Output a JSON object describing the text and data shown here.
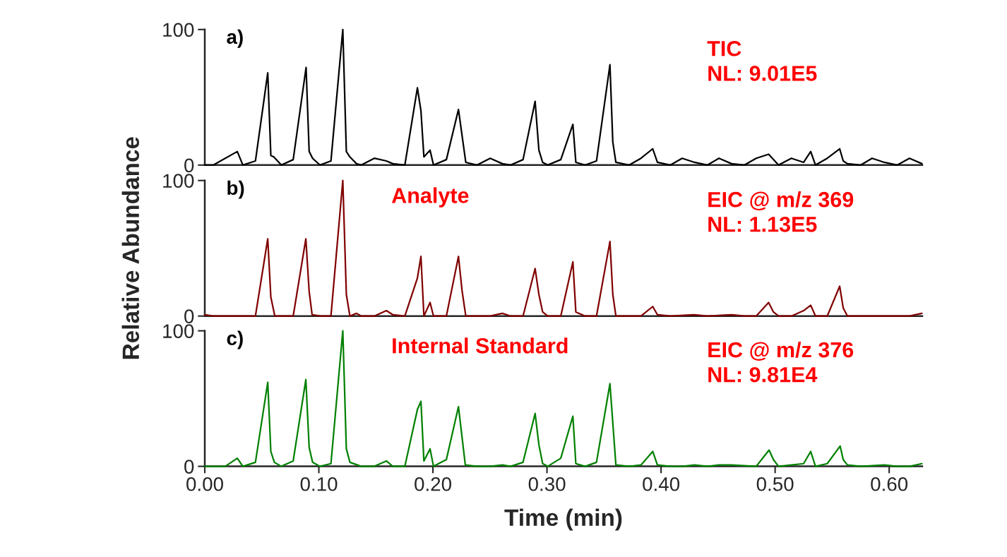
{
  "chart_data": [
    {
      "type": "line",
      "annotations": [
        "a)",
        "TIC\nNL: 9.01E5"
      ],
      "xlim": [
        0,
        0.629
      ],
      "ylim": [
        0,
        100
      ],
      "yticks": [
        0,
        100
      ],
      "tick_labels": "y",
      "grid": false,
      "legend": false,
      "series": [
        {
          "color": "#000000",
          "x": [
            0,
            0.0075,
            0.0285,
            0.0334,
            0.0444,
            0.0552,
            0.0579,
            0.0605,
            0.0671,
            0.0775,
            0.0888,
            0.0915,
            0.0945,
            0.1009,
            0.1106,
            0.121,
            0.1241,
            0.1272,
            0.133,
            0.1372,
            0.1486,
            0.1592,
            0.1648,
            0.1754,
            0.1864,
            0.1895,
            0.1921,
            0.1975,
            0.2005,
            0.2118,
            0.2224,
            0.2288,
            0.2387,
            0.2502,
            0.2609,
            0.2681,
            0.279,
            0.2896,
            0.2929,
            0.2962,
            0.3006,
            0.3121,
            0.3227,
            0.3253,
            0.3335,
            0.3434,
            0.3552,
            0.3577,
            0.3604,
            0.3721,
            0.3824,
            0.3927,
            0.3968,
            0.4082,
            0.4185,
            0.4294,
            0.4407,
            0.4508,
            0.4618,
            0.4731,
            0.4834,
            0.4943,
            0.503,
            0.5143,
            0.525,
            0.5312,
            0.5354,
            0.5457,
            0.5566,
            0.5597,
            0.5634,
            0.5751,
            0.585,
            0.5957,
            0.6071,
            0.6178,
            0.6287
          ],
          "values": [
            0,
            0,
            10,
            0,
            3,
            68,
            7,
            6,
            0,
            4,
            72,
            10,
            5,
            0,
            3,
            100,
            10,
            6,
            1,
            0,
            5,
            3,
            1,
            0,
            57,
            40,
            6,
            11,
            0,
            4,
            41,
            2,
            0,
            5,
            1,
            0,
            4,
            47,
            11,
            2,
            0,
            4,
            30,
            2,
            0,
            3,
            74,
            17,
            2,
            0,
            5,
            12,
            2,
            0,
            5,
            2,
            0,
            5,
            1,
            0,
            5,
            8,
            0,
            5,
            2,
            10,
            0,
            5,
            12,
            3,
            1,
            0,
            5,
            2,
            0,
            5,
            1
          ]
        }
      ]
    },
    {
      "type": "line",
      "annotations": [
        "b)",
        "Analyte",
        "EIC @ m/z 369\nNL: 1.13E5"
      ],
      "ylabel": "Relative Abundance",
      "xlim": [
        0,
        0.629
      ],
      "ylim": [
        0,
        100
      ],
      "yticks": [
        0,
        100
      ],
      "tick_labels": "y",
      "grid": false,
      "legend": false,
      "series": [
        {
          "color": "#800000",
          "x": [
            0,
            0.0075,
            0.0444,
            0.0552,
            0.0579,
            0.0614,
            0.0775,
            0.0886,
            0.0915,
            0.0941,
            0.1018,
            0.1106,
            0.121,
            0.1241,
            0.1272,
            0.133,
            0.1372,
            0.1486,
            0.1592,
            0.1648,
            0.1754,
            0.1864,
            0.1895,
            0.1921,
            0.1975,
            0.2005,
            0.2118,
            0.2224,
            0.2255,
            0.2288,
            0.2502,
            0.2609,
            0.2681,
            0.279,
            0.2896,
            0.2929,
            0.2962,
            0.3006,
            0.3121,
            0.3227,
            0.3253,
            0.3335,
            0.3434,
            0.3552,
            0.3577,
            0.3604,
            0.3824,
            0.3927,
            0.3968,
            0.4082,
            0.4288,
            0.4407,
            0.4618,
            0.4731,
            0.4834,
            0.4943,
            0.4985,
            0.503,
            0.5143,
            0.525,
            0.5312,
            0.5354,
            0.5457,
            0.5566,
            0.5597,
            0.5634,
            0.6178,
            0.6287
          ],
          "values": [
            1,
            0,
            0,
            57,
            14,
            0,
            0,
            57,
            18,
            1,
            0,
            0,
            100,
            16,
            0,
            2,
            0,
            0,
            4,
            1,
            0,
            28,
            44,
            0,
            10,
            0,
            0,
            44,
            19,
            0,
            0,
            2,
            0,
            0,
            35,
            16,
            3,
            0,
            0,
            40,
            3,
            0,
            0,
            55,
            16,
            0,
            0,
            7,
            1,
            0,
            1,
            0,
            1,
            0,
            0,
            10,
            3,
            0,
            0,
            4,
            8,
            0,
            0,
            22,
            6,
            0,
            0,
            2
          ]
        }
      ]
    },
    {
      "type": "line",
      "annotations": [
        "c)",
        "Internal Standard",
        "EIC @ m/z 376\nNL: 9.81E4"
      ],
      "xlabel": "Time (min)",
      "xlim": [
        0,
        0.629
      ],
      "ylim": [
        0,
        100
      ],
      "xticks": [
        {
          "value": 0,
          "label": "0.00"
        },
        {
          "value": 0.1,
          "label": "0.10"
        },
        {
          "value": 0.2,
          "label": "0.20"
        },
        {
          "value": 0.3,
          "label": "0.30"
        },
        {
          "value": 0.4,
          "label": "0.40"
        },
        {
          "value": 0.5,
          "label": "0.50"
        },
        {
          "value": 0.6,
          "label": "0.60"
        }
      ],
      "yticks": [
        0,
        100
      ],
      "grid": false,
      "legend": false,
      "series": [
        {
          "color": "#008000",
          "x": [
            0,
            0.0075,
            0.0179,
            0.0285,
            0.0334,
            0.0444,
            0.0552,
            0.0579,
            0.061,
            0.0671,
            0.0775,
            0.0886,
            0.0915,
            0.0945,
            0.1009,
            0.1106,
            0.121,
            0.1241,
            0.1272,
            0.1372,
            0.1486,
            0.1592,
            0.1648,
            0.1754,
            0.1864,
            0.1895,
            0.1921,
            0.1975,
            0.2005,
            0.2118,
            0.2224,
            0.2284,
            0.2387,
            0.2502,
            0.2609,
            0.2681,
            0.279,
            0.2896,
            0.2929,
            0.2962,
            0.3006,
            0.3121,
            0.3227,
            0.3253,
            0.3335,
            0.3434,
            0.3552,
            0.3604,
            0.3721,
            0.3824,
            0.3927,
            0.3968,
            0.4082,
            0.4185,
            0.4294,
            0.4407,
            0.4508,
            0.4618,
            0.4834,
            0.4947,
            0.4985,
            0.503,
            0.5143,
            0.525,
            0.5312,
            0.5354,
            0.5457,
            0.557,
            0.5597,
            0.5634,
            0.5751,
            0.5957,
            0.6071,
            0.6178,
            0.6287
          ],
          "values": [
            0,
            0,
            0,
            6,
            0,
            3,
            62,
            11,
            3,
            0,
            4,
            64,
            14,
            3,
            0,
            2,
            100,
            13,
            3,
            0,
            0,
            4,
            0,
            0,
            42,
            48,
            4,
            13,
            0,
            5,
            44,
            1,
            0,
            0,
            1,
            0,
            3,
            39,
            16,
            2,
            0,
            6,
            37,
            2,
            0,
            3,
            61,
            1,
            0,
            1,
            11,
            1,
            0,
            0,
            1,
            0,
            1,
            1,
            0,
            12,
            5,
            0,
            1,
            2,
            11,
            0,
            2,
            15,
            5,
            1,
            0,
            1,
            0,
            0,
            2
          ]
        }
      ]
    }
  ]
}
